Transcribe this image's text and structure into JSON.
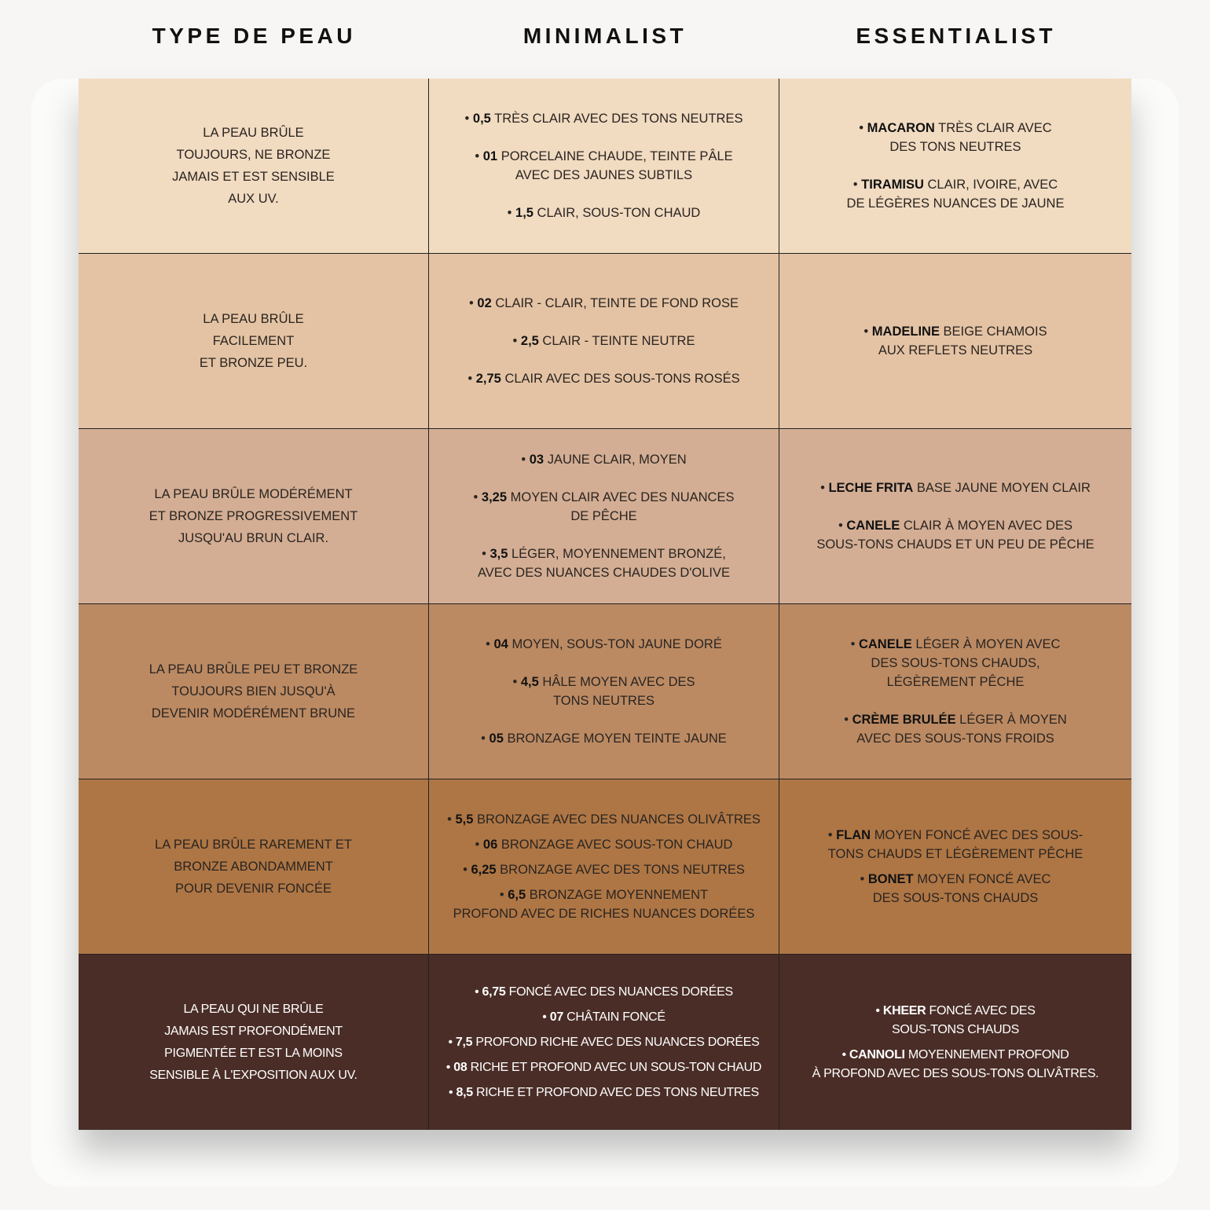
{
  "headers": [
    "TYPE DE PEAU",
    "MINIMALIST",
    "ESSENTIALIST"
  ],
  "rows": [
    {
      "color": "#f1dbc1",
      "skin": "LA PEAU BRÛLE\nTOUJOURS, NE BRONZE\nJAMAIS ET EST SENSIBLE\nAUX UV.",
      "minimalist": [
        {
          "code": "0,5",
          "text": "TRÈS CLAIR AVEC DES TONS NEUTRES"
        },
        {
          "code": "01",
          "text": "PORCELAINE CHAUDE, TEINTE PÂLE\nAVEC DES JAUNES SUBTILS"
        },
        {
          "code": "1,5",
          "text": "CLAIR, SOUS-TON CHAUD"
        }
      ],
      "essentialist": [
        {
          "code": "MACARON",
          "text": "TRÈS CLAIR AVEC\nDES TONS NEUTRES"
        },
        {
          "code": "TIRAMISU",
          "text": "CLAIR, IVOIRE, AVEC\nDE LÉGÈRES NUANCES DE JAUNE"
        }
      ]
    },
    {
      "color": "#e4c3a4",
      "skin": "LA PEAU BRÛLE\nFACILEMENT\nET BRONZE PEU.",
      "minimalist": [
        {
          "code": "02",
          "text": "CLAIR - CLAIR, TEINTE DE FOND ROSE"
        },
        {
          "code": "2,5",
          "text": "CLAIR - TEINTE NEUTRE"
        },
        {
          "code": "2,75",
          "text": "CLAIR AVEC DES SOUS-TONS ROSÉS"
        }
      ],
      "essentialist": [
        {
          "code": "MADELINE",
          "text": "BEIGE CHAMOIS\nAUX REFLETS NEUTRES"
        }
      ]
    },
    {
      "color": "#d3ae94",
      "skin": "LA PEAU BRÛLE MODÉRÉMENT\nET BRONZE PROGRESSIVEMENT\nJUSQU'AU BRUN CLAIR.",
      "minimalist": [
        {
          "code": "03",
          "text": "JAUNE CLAIR, MOYEN"
        },
        {
          "code": "3,25",
          "text": "MOYEN CLAIR AVEC DES NUANCES\nDE PÊCHE"
        },
        {
          "code": "3,5",
          "text": "LÉGER, MOYENNEMENT BRONZÉ,\nAVEC DES NUANCES CHAUDES D'OLIVE"
        }
      ],
      "essentialist": [
        {
          "code": "LECHE FRITA",
          "text": "BASE JAUNE MOYEN CLAIR"
        },
        {
          "code": "CANELE",
          "text": "CLAIR À MOYEN AVEC DES\nSOUS-TONS CHAUDS ET UN PEU DE PÊCHE"
        }
      ]
    },
    {
      "color": "#bb8a63",
      "skin": "LA PEAU BRÛLE PEU ET BRONZE\nTOUJOURS BIEN JUSQU'À\nDEVENIR MODÉRÉMENT BRUNE",
      "minimalist": [
        {
          "code": "04",
          "text": "MOYEN, SOUS-TON JAUNE DORÉ"
        },
        {
          "code": "4,5",
          "text": "HÂLE MOYEN AVEC DES\nTONS NEUTRES"
        },
        {
          "code": "05",
          "text": "BRONZAGE MOYEN TEINTE JAUNE"
        }
      ],
      "essentialist": [
        {
          "code": "CANELE",
          "text": "LÉGER À MOYEN AVEC\nDES SOUS-TONS CHAUDS,\nLÉGÈREMENT PÊCHE"
        },
        {
          "code": "CRÈME BRULÉE",
          "text": "LÉGER À MOYEN\nAVEC DES SOUS-TONS FROIDS"
        }
      ]
    },
    {
      "color": "#ae7645",
      "skin": "LA PEAU BRÛLE RAREMENT ET\nBRONZE ABONDAMMENT\nPOUR DEVENIR FONCÉE",
      "minimalist": [
        {
          "code": "5,5",
          "text": "BRONZAGE AVEC DES NUANCES OLIVÂTRES"
        },
        {
          "code": "06",
          "text": "BRONZAGE AVEC SOUS-TON CHAUD"
        },
        {
          "code": "6,25",
          "text": "BRONZAGE AVEC DES TONS NEUTRES"
        },
        {
          "code": "6,5",
          "text": "BRONZAGE MOYENNEMENT\nPROFOND AVEC DE RICHES NUANCES DORÉES"
        }
      ],
      "essentialist": [
        {
          "code": "FLAN",
          "text": "MOYEN FONCÉ AVEC DES SOUS-\nTONS CHAUDS ET LÉGÈREMENT PÊCHE"
        },
        {
          "code": "BONET",
          "text": "MOYEN FONCÉ AVEC\nDES SOUS-TONS CHAUDS"
        }
      ]
    },
    {
      "color": "#4a2d27",
      "skin": "LA PEAU QUI NE BRÛLE\nJAMAIS EST PROFONDÉMENT\nPIGMENTÉE ET EST LA MOINS\nSENSIBLE À L'EXPOSITION AUX UV.",
      "minimalist": [
        {
          "code": "6,75",
          "text": "FONCÉ AVEC DES NUANCES DORÉES"
        },
        {
          "code": "07",
          "text": "CHÂTAIN FONCÉ"
        },
        {
          "code": "7,5",
          "text": "PROFOND RICHE AVEC DES NUANCES DORÉES"
        },
        {
          "code": "08",
          "text": "RICHE ET PROFOND AVEC UN SOUS-TON CHAUD"
        },
        {
          "code": "8,5",
          "text": "RICHE ET PROFOND AVEC DES TONS NEUTRES"
        }
      ],
      "essentialist": [
        {
          "code": "KHEER",
          "text": "FONCÉ AVEC DES\nSOUS-TONS CHAUDS"
        },
        {
          "code": "CANNOLI",
          "text": " MOYENNEMENT PROFOND\nÀ PROFOND AVEC DES SOUS-TONS OLIVÂTRES."
        }
      ]
    }
  ]
}
